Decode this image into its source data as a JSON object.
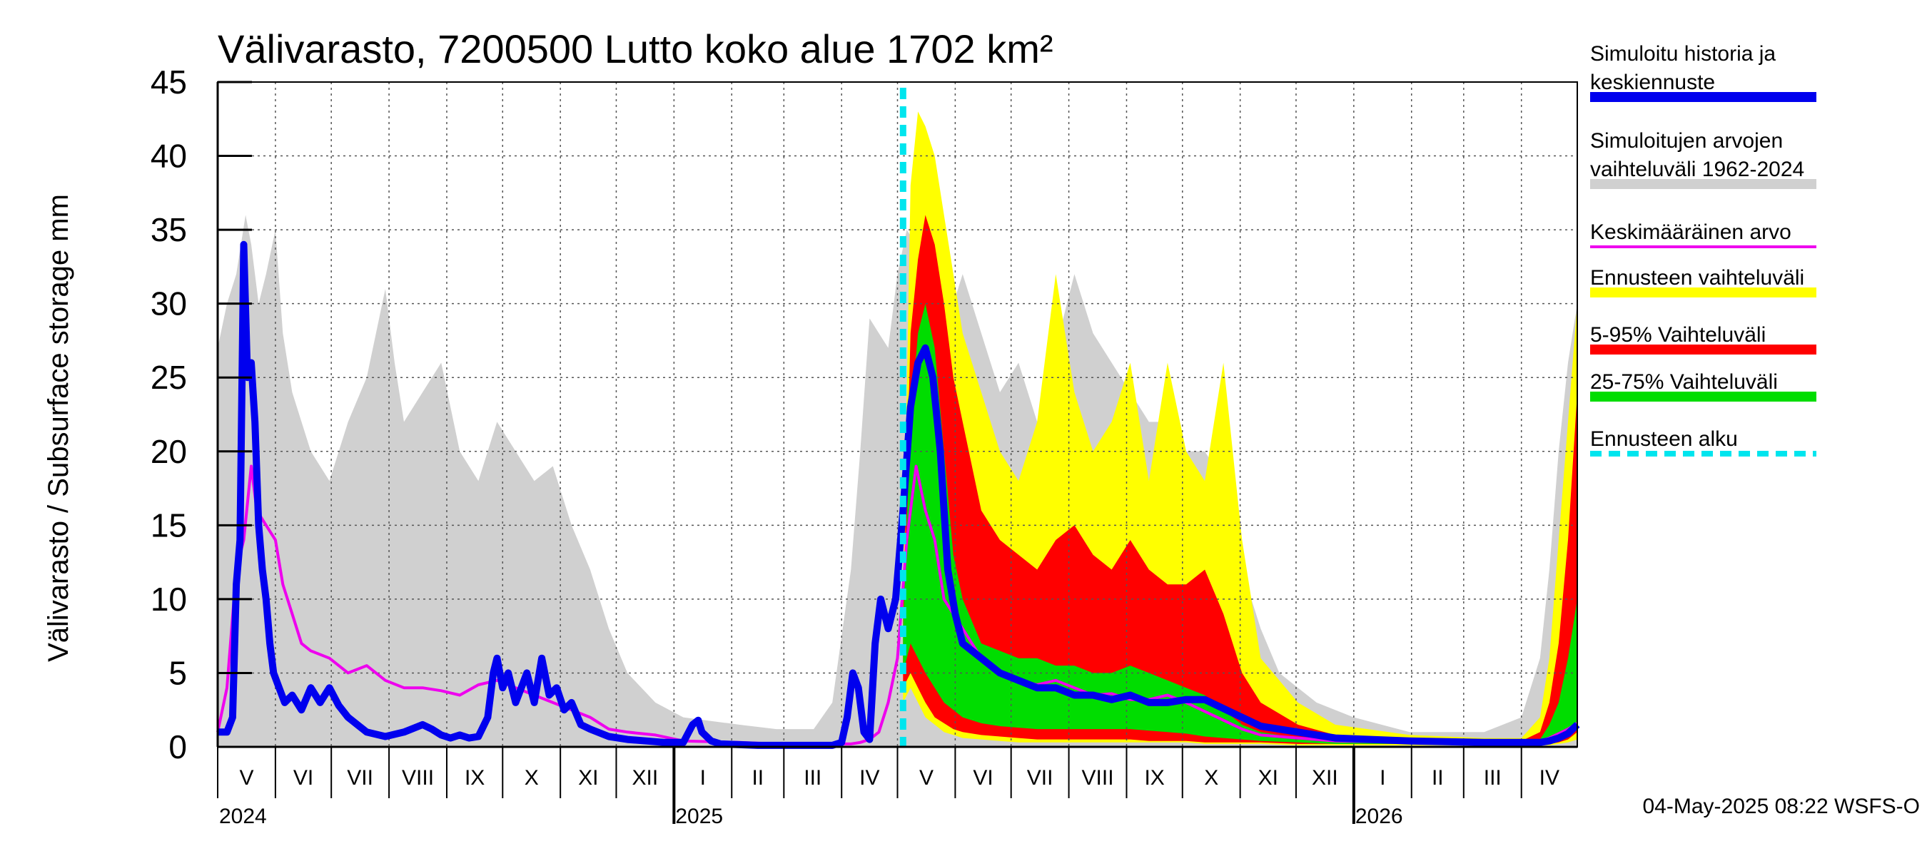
{
  "chart_data": {
    "type": "area",
    "title": "Välivarasto, 7200500 Lutto koko alue 1702 km²",
    "ylabel": "Välivarasto / Subsurface storage  mm",
    "ylim": [
      0,
      45
    ],
    "yticks": [
      "0",
      "5",
      "10",
      "15",
      "20",
      "25",
      "30",
      "35",
      "40",
      "45"
    ],
    "xrange_days": [
      0,
      730
    ],
    "month_ticks": [
      {
        "label": "V",
        "start": 0
      },
      {
        "label": "VI",
        "start": 31
      },
      {
        "label": "VII",
        "start": 61
      },
      {
        "label": "VIII",
        "start": 92
      },
      {
        "label": "IX",
        "start": 123
      },
      {
        "label": "X",
        "start": 153
      },
      {
        "label": "XI",
        "start": 184
      },
      {
        "label": "XII",
        "start": 214
      },
      {
        "label": "I",
        "start": 245
      },
      {
        "label": "II",
        "start": 276
      },
      {
        "label": "III",
        "start": 304
      },
      {
        "label": "IV",
        "start": 335
      },
      {
        "label": "V",
        "start": 365
      },
      {
        "label": "VI",
        "start": 396
      },
      {
        "label": "VII",
        "start": 426
      },
      {
        "label": "VIII",
        "start": 457
      },
      {
        "label": "IX",
        "start": 488
      },
      {
        "label": "X",
        "start": 518
      },
      {
        "label": "XI",
        "start": 549
      },
      {
        "label": "XII",
        "start": 579
      },
      {
        "label": "I",
        "start": 610
      },
      {
        "label": "II",
        "start": 641
      },
      {
        "label": "III",
        "start": 669
      },
      {
        "label": "IV",
        "start": 700
      }
    ],
    "years": [
      {
        "label": "2024",
        "day": 0
      },
      {
        "label": "2025",
        "day": 245
      },
      {
        "label": "2026",
        "day": 610
      }
    ],
    "forecast_start_day": 368,
    "legend": [
      {
        "label": "Simuloitu historia ja keskiennuste",
        "lines": [
          "Simuloitu historia ja",
          "keskiennuste"
        ],
        "color": "#0000ee",
        "style": "solid"
      },
      {
        "label": "Simuloitujen arvojen vaihteluväli 1962-2024",
        "lines": [
          "Simuloitujen arvojen",
          "vaihteluväli 1962-2024"
        ],
        "color": "#d0d0d0",
        "style": "solid"
      },
      {
        "label": "Keskimääräinen arvo",
        "lines": [
          "Keskimääräinen arvo"
        ],
        "color": "#ee00ee",
        "style": "thin"
      },
      {
        "label": "Ennusteen vaihteluväli",
        "lines": [
          "Ennusteen vaihteluväli"
        ],
        "color": "#ffff00",
        "style": "solid"
      },
      {
        "label": "5-95% Vaihteluväli",
        "lines": [
          "5-95% Vaihteluväli"
        ],
        "color": "#ff0000",
        "style": "solid"
      },
      {
        "label": "25-75% Vaihteluväli",
        "lines": [
          "25-75% Vaihteluväli"
        ],
        "color": "#00dd00",
        "style": "solid"
      },
      {
        "label": "Ennusteen alku",
        "lines": [
          "Ennusteen alku"
        ],
        "color": "#00e5ee",
        "style": "dashed"
      }
    ],
    "series": {
      "history_range": {
        "days": [
          0,
          5,
          10,
          15,
          18,
          22,
          26,
          31,
          35,
          40,
          50,
          60,
          70,
          80,
          90,
          95,
          100,
          110,
          120,
          130,
          140,
          150,
          160,
          170,
          180,
          190,
          200,
          210,
          220,
          235,
          250,
          280,
          300,
          320,
          330,
          340,
          345,
          350,
          355,
          360,
          365,
          370,
          375,
          380,
          385,
          390,
          395,
          400,
          410,
          420,
          430,
          440,
          450,
          460,
          470,
          480,
          490,
          500,
          510,
          520,
          530,
          540,
          550,
          560,
          570,
          580,
          590,
          610,
          640,
          680,
          700,
          710,
          715,
          720,
          725,
          730
        ],
        "upper": [
          27,
          30,
          32,
          36,
          34,
          30,
          32,
          35,
          28,
          24,
          20,
          18,
          22,
          25,
          31,
          26,
          22,
          24,
          26,
          20,
          18,
          22,
          20,
          18,
          19,
          15,
          12,
          8,
          5,
          3,
          2,
          1.5,
          1.2,
          1.2,
          3,
          12,
          20,
          29,
          28,
          27,
          32,
          35,
          34,
          32,
          30,
          28,
          30,
          32,
          28,
          24,
          26,
          22,
          27,
          32,
          28,
          26,
          24,
          22,
          22,
          20,
          20,
          18,
          12,
          8,
          5,
          4,
          3,
          2,
          1,
          1,
          2,
          6,
          12,
          20,
          26,
          30
        ],
        "lower": [
          0,
          0,
          0,
          0,
          0,
          0,
          0,
          0,
          0,
          0,
          0,
          0,
          0,
          0,
          0,
          0,
          0,
          0,
          0,
          0,
          0,
          0,
          0,
          0,
          0,
          0,
          0,
          0,
          0,
          0,
          0,
          0,
          0,
          0,
          0,
          0,
          0,
          0,
          0,
          0,
          0,
          0,
          0,
          0,
          0,
          0,
          0,
          0,
          0,
          0,
          0,
          0,
          0,
          0,
          0,
          0,
          0,
          0,
          0,
          0,
          0,
          0,
          0,
          0,
          0,
          0,
          0,
          0,
          0,
          0,
          0,
          0,
          0,
          0,
          0,
          0
        ]
      },
      "forecast_range": {
        "days": [
          368,
          372,
          376,
          380,
          385,
          390,
          395,
          400,
          410,
          420,
          430,
          440,
          450,
          460,
          470,
          480,
          490,
          500,
          510,
          520,
          530,
          540,
          550,
          560,
          580,
          600,
          640,
          680,
          700,
          710,
          715,
          720,
          725,
          730
        ],
        "upper": [
          10,
          38,
          43,
          42,
          40,
          36,
          32,
          28,
          24,
          20,
          18,
          22,
          32,
          24,
          20,
          22,
          26,
          18,
          26,
          20,
          18,
          26,
          14,
          6,
          3,
          1.5,
          0.8,
          0.6,
          0.6,
          2,
          6,
          14,
          22,
          30
        ],
        "lower": [
          3,
          4,
          3,
          2,
          1.5,
          1,
          0.8,
          0.6,
          0.5,
          0.4,
          0.3,
          0.3,
          0.3,
          0.3,
          0.3,
          0.3,
          0.3,
          0.3,
          0.3,
          0.3,
          0.2,
          0.2,
          0.2,
          0.2,
          0.1,
          0.1,
          0.1,
          0.1,
          0.1,
          0.1,
          0.1,
          0.2,
          0.3,
          0.5
        ]
      },
      "range_5_95": {
        "days": [
          368,
          372,
          376,
          380,
          385,
          390,
          395,
          400,
          410,
          420,
          430,
          440,
          450,
          460,
          470,
          480,
          490,
          500,
          510,
          520,
          530,
          540,
          550,
          560,
          580,
          600,
          640,
          680,
          700,
          710,
          715,
          720,
          725,
          730
        ],
        "upper": [
          9,
          28,
          33,
          36,
          34,
          30,
          25,
          22,
          16,
          14,
          13,
          12,
          14,
          15,
          13,
          12,
          14,
          12,
          11,
          11,
          12,
          9,
          5,
          3,
          1.5,
          0.8,
          0.5,
          0.4,
          0.4,
          1,
          3,
          7,
          14,
          24
        ],
        "lower": [
          4,
          5,
          4,
          3,
          2,
          1.6,
          1.2,
          1,
          0.8,
          0.7,
          0.6,
          0.5,
          0.5,
          0.5,
          0.5,
          0.5,
          0.5,
          0.4,
          0.4,
          0.4,
          0.3,
          0.3,
          0.3,
          0.3,
          0.2,
          0.2,
          0.2,
          0.2,
          0.2,
          0.2,
          0.2,
          0.3,
          0.5,
          1
        ]
      },
      "range_25_75": {
        "days": [
          368,
          372,
          376,
          380,
          385,
          390,
          395,
          400,
          410,
          420,
          430,
          440,
          450,
          460,
          470,
          480,
          490,
          500,
          510,
          520,
          530,
          540,
          550,
          560,
          580,
          600,
          640,
          680,
          700,
          710,
          715,
          720,
          725,
          730
        ],
        "upper": [
          8,
          22,
          28,
          30,
          27,
          20,
          13,
          10,
          7,
          6.5,
          6,
          6,
          5.5,
          5.5,
          5,
          5,
          5.5,
          5,
          4.5,
          4,
          3.5,
          2.5,
          1.5,
          1,
          0.6,
          0.4,
          0.3,
          0.3,
          0.3,
          0.5,
          1.5,
          3,
          6,
          10
        ],
        "lower": [
          5,
          7,
          6,
          5,
          4,
          3,
          2.5,
          2,
          1.6,
          1.4,
          1.3,
          1.2,
          1.2,
          1.2,
          1.2,
          1.2,
          1.2,
          1.1,
          1,
          0.9,
          0.7,
          0.6,
          0.5,
          0.4,
          0.3,
          0.2,
          0.2,
          0.2,
          0.2,
          0.3,
          0.5,
          0.8,
          1,
          1.5
        ]
      },
      "average": {
        "days": [
          0,
          5,
          10,
          14,
          18,
          21,
          26,
          31,
          35,
          40,
          45,
          50,
          60,
          70,
          80,
          90,
          100,
          110,
          120,
          130,
          140,
          150,
          160,
          170,
          180,
          190,
          200,
          210,
          220,
          235,
          250,
          280,
          300,
          320,
          335,
          340,
          345,
          350,
          355,
          360,
          365,
          370,
          375,
          380,
          385,
          390,
          400,
          410,
          420,
          430,
          440,
          450,
          460,
          470,
          480,
          490,
          500,
          510,
          520,
          530,
          540,
          550,
          560,
          580,
          600,
          640,
          680,
          700,
          710,
          715,
          720,
          725,
          730
        ],
        "values": [
          1,
          4,
          12,
          14,
          19,
          16,
          15,
          14,
          11,
          9,
          7,
          6.5,
          6,
          5,
          5.5,
          4.5,
          4,
          4,
          3.8,
          3.5,
          4.2,
          4.5,
          4,
          3.5,
          3,
          2.5,
          2,
          1.2,
          1,
          0.8,
          0.4,
          0.3,
          0.2,
          0.2,
          0.2,
          0.2,
          0.3,
          0.5,
          1,
          3,
          6,
          14,
          19,
          16,
          14,
          10,
          8,
          6,
          5,
          4.5,
          4.2,
          4.5,
          4,
          3.5,
          3.6,
          3.2,
          3.2,
          3.5,
          3,
          2.4,
          1.8,
          1.2,
          0.8,
          0.6,
          0.4,
          0.3,
          0.3,
          0.3,
          0.4,
          0.6,
          0.9,
          1.2,
          1.6
        ]
      },
      "median": {
        "days": [
          0,
          5,
          8,
          10,
          12,
          14,
          16,
          18,
          20,
          22,
          24,
          26,
          28,
          30,
          33,
          36,
          40,
          45,
          50,
          55,
          60,
          65,
          70,
          75,
          80,
          90,
          100,
          110,
          115,
          120,
          125,
          130,
          135,
          140,
          145,
          148,
          150,
          153,
          156,
          160,
          163,
          166,
          170,
          174,
          178,
          182,
          186,
          190,
          195,
          200,
          210,
          220,
          230,
          240,
          250,
          255,
          258,
          260,
          265,
          270,
          290,
          300,
          320,
          330,
          335,
          338,
          341,
          344,
          347,
          350,
          353,
          356,
          360,
          364,
          368,
          372,
          376,
          380,
          384,
          388,
          392,
          396,
          400,
          410,
          420,
          430,
          440,
          450,
          460,
          470,
          480,
          490,
          500,
          510,
          520,
          530,
          540,
          550,
          560,
          580,
          600,
          640,
          680,
          700,
          710,
          715,
          720,
          725,
          730
        ],
        "values": [
          1,
          1,
          2,
          11,
          14,
          34,
          25,
          26,
          22,
          15,
          12,
          10,
          7,
          5,
          4,
          3,
          3.5,
          2.5,
          4,
          3,
          4,
          2.8,
          2,
          1.5,
          1,
          0.7,
          1,
          1.5,
          1.2,
          0.8,
          0.6,
          0.8,
          0.6,
          0.7,
          2,
          5,
          6,
          4,
          5,
          3,
          4,
          5,
          3,
          6,
          3.5,
          4,
          2.5,
          3,
          1.5,
          1.2,
          0.7,
          0.5,
          0.4,
          0.3,
          0.3,
          1.5,
          1.8,
          1,
          0.4,
          0.2,
          0.1,
          0.1,
          0.1,
          0.1,
          0.3,
          2,
          5,
          4,
          1,
          0.5,
          7,
          10,
          8,
          10,
          16,
          23,
          26,
          27,
          25,
          20,
          12,
          9,
          7,
          6,
          5,
          4.5,
          4,
          4,
          3.5,
          3.5,
          3.2,
          3.5,
          3,
          3,
          3.2,
          3.2,
          2.6,
          2,
          1.4,
          1,
          0.6,
          0.4,
          0.3,
          0.3,
          0.3,
          0.4,
          0.6,
          0.9,
          1.5
        ]
      }
    }
  },
  "footer": {
    "timestamp": "04-May-2025 08:22 WSFS-O"
  }
}
